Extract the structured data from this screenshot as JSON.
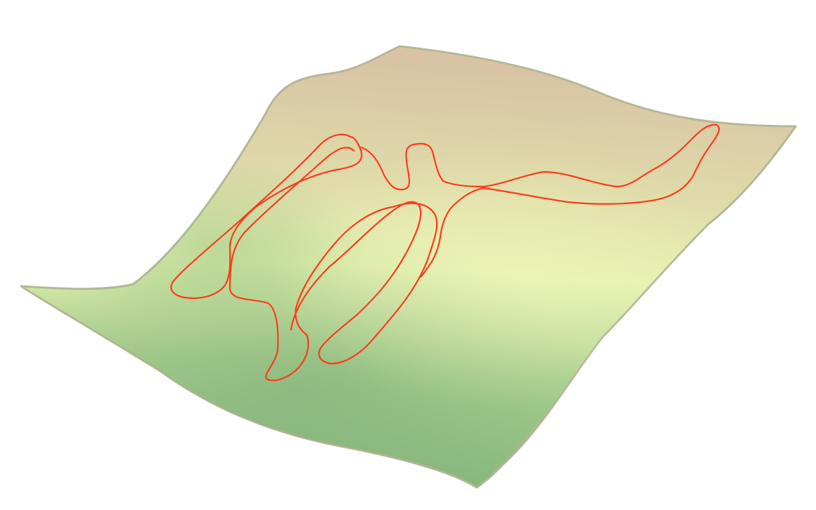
{
  "scene": {
    "title": "",
    "object": "terrain-surface",
    "overlay": "contour-outline",
    "colors": {
      "background": "#ffffff",
      "surface_high": "#d8c4a4",
      "surface_mid": "#e6f2b0",
      "surface_low": "#86b67c",
      "surface_edge": "#b4b898",
      "contour": "#ff3a1a"
    }
  }
}
